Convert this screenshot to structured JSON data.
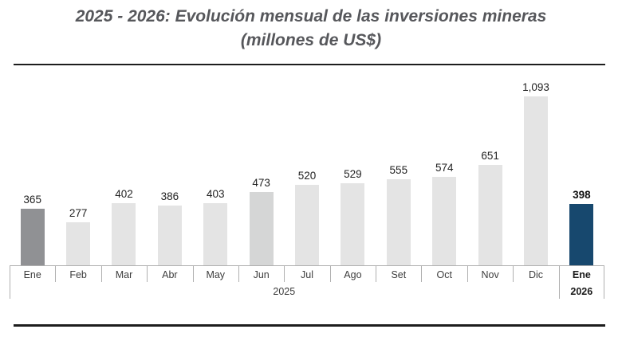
{
  "title": {
    "line1": "2025 - 2026: Evolución mensual de las inversiones mineras",
    "line2": "(millones de US$)"
  },
  "chart_data": {
    "type": "bar",
    "title": "2025 - 2026: Evolución mensual de las inversiones mineras (millones de US$)",
    "unit": "millones de US$",
    "categories": [
      "Ene",
      "Feb",
      "Mar",
      "Abr",
      "May",
      "Jun",
      "Jul",
      "Ago",
      "Set",
      "Oct",
      "Nov",
      "Dic",
      "Ene"
    ],
    "values": [
      365,
      277,
      402,
      386,
      403,
      473,
      520,
      529,
      555,
      574,
      651,
      1093,
      398
    ],
    "value_labels": [
      "365",
      "277",
      "402",
      "386",
      "403",
      "473",
      "520",
      "529",
      "555",
      "574",
      "651",
      "1,093",
      "398"
    ],
    "bar_colors": [
      "#909194",
      "#e4e4e4",
      "#e4e4e4",
      "#e4e4e4",
      "#e4e4e4",
      "#d5d6d6",
      "#e4e4e4",
      "#e4e4e4",
      "#e4e4e4",
      "#e4e4e4",
      "#e4e4e4",
      "#e4e4e4",
      "#17486e"
    ],
    "emphasized_categories": [
      "Ene 2026"
    ],
    "year_groups": [
      {
        "label": "2025",
        "span": 12,
        "bold": false
      },
      {
        "label": "2026",
        "span": 1,
        "bold": true
      }
    ],
    "xlabel": "",
    "ylabel": "",
    "ylim": [
      0,
      1093
    ],
    "grid": false,
    "legend": false,
    "value_labels_shown": true
  },
  "colors": {
    "bar_default": "#e4e4e4",
    "bar_first_month": "#909194",
    "bar_june": "#d5d6d6",
    "bar_highlight_navy": "#17486e",
    "axis_line": "#b0b0b0",
    "title_text": "#56575b",
    "divider_rule": "#1d1d1d"
  }
}
